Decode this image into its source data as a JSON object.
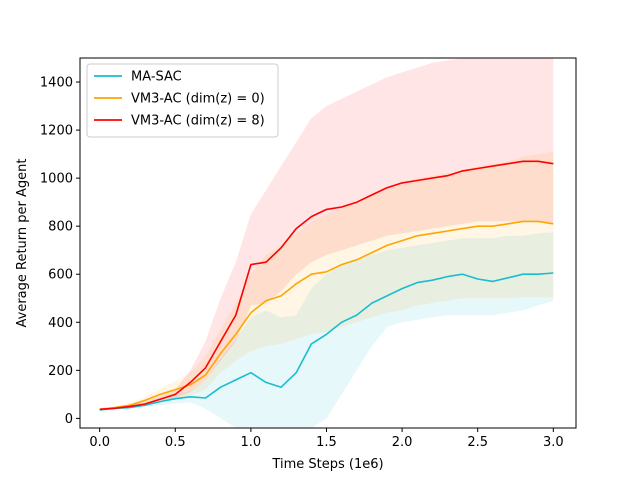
{
  "chart_data": {
    "type": "line",
    "title": "",
    "xlabel": "Time Steps (1e6)",
    "ylabel": "Average Return per Agent",
    "xlim": [
      -0.13,
      3.15
    ],
    "ylim": [
      -40,
      1500
    ],
    "xticks": [
      0.0,
      0.5,
      1.0,
      1.5,
      2.0,
      2.5,
      3.0
    ],
    "xtick_labels": [
      "0.0",
      "0.5",
      "1.0",
      "1.5",
      "2.0",
      "2.5",
      "3.0"
    ],
    "yticks": [
      0,
      200,
      400,
      600,
      800,
      1000,
      1200,
      1400
    ],
    "ytick_labels": [
      "0",
      "200",
      "400",
      "600",
      "800",
      "1000",
      "1200",
      "1400"
    ],
    "grid": false,
    "legend": "top-left",
    "x": [
      0.0,
      0.1,
      0.2,
      0.3,
      0.4,
      0.5,
      0.6,
      0.7,
      0.8,
      0.9,
      1.0,
      1.1,
      1.2,
      1.3,
      1.4,
      1.5,
      1.6,
      1.7,
      1.8,
      1.9,
      2.0,
      2.1,
      2.2,
      2.3,
      2.4,
      2.5,
      2.6,
      2.7,
      2.8,
      2.9,
      3.0
    ],
    "series": [
      {
        "name": "MA-SAC",
        "color": "#17becf",
        "values": [
          35,
          42,
          45,
          55,
          70,
          82,
          90,
          85,
          130,
          160,
          190,
          150,
          130,
          190,
          310,
          350,
          400,
          430,
          480,
          510,
          540,
          565,
          575,
          590,
          600,
          580,
          570,
          585,
          600,
          600,
          605
        ],
        "lower": [
          35,
          40,
          42,
          48,
          55,
          62,
          66,
          40,
          0,
          -40,
          -40,
          -40,
          -40,
          -40,
          -40,
          0,
          100,
          200,
          300,
          380,
          400,
          410,
          420,
          430,
          430,
          430,
          430,
          440,
          450,
          470,
          490
        ],
        "upper": [
          35,
          44,
          48,
          62,
          85,
          100,
          115,
          160,
          250,
          330,
          420,
          450,
          420,
          430,
          540,
          600,
          640,
          660,
          680,
          700,
          710,
          720,
          730,
          740,
          750,
          750,
          750,
          760,
          760,
          770,
          775
        ]
      },
      {
        "name": "VM3-AC (dim(z) = 0)",
        "color": "#ffa500",
        "values": [
          38,
          45,
          55,
          75,
          100,
          120,
          140,
          180,
          270,
          350,
          440,
          490,
          510,
          560,
          600,
          610,
          640,
          660,
          690,
          720,
          740,
          760,
          770,
          780,
          790,
          800,
          800,
          810,
          820,
          820,
          810
        ],
        "lower": [
          36,
          42,
          48,
          60,
          75,
          85,
          95,
          120,
          190,
          240,
          280,
          300,
          310,
          330,
          350,
          360,
          380,
          400,
          420,
          440,
          450,
          470,
          480,
          490,
          500,
          500,
          500,
          500,
          505,
          505,
          505
        ],
        "upper": [
          40,
          50,
          65,
          90,
          125,
          155,
          190,
          260,
          370,
          480,
          600,
          680,
          720,
          770,
          820,
          850,
          880,
          900,
          930,
          960,
          980,
          1000,
          1010,
          1020,
          1030,
          1050,
          1060,
          1070,
          1090,
          1100,
          1110
        ]
      },
      {
        "name": "VM3-AC (dim(z) = 8)",
        "color": "#ff0000",
        "values": [
          38,
          42,
          50,
          60,
          80,
          100,
          150,
          210,
          320,
          430,
          640,
          650,
          710,
          790,
          840,
          870,
          880,
          900,
          930,
          960,
          980,
          990,
          1000,
          1010,
          1030,
          1040,
          1050,
          1060,
          1070,
          1070,
          1060
        ],
        "lower": [
          36,
          40,
          46,
          52,
          68,
          85,
          110,
          160,
          240,
          320,
          470,
          480,
          530,
          600,
          650,
          680,
          700,
          720,
          740,
          760,
          770,
          780,
          790,
          800,
          810,
          820,
          820,
          820,
          820,
          820,
          810
        ],
        "upper": [
          40,
          45,
          55,
          70,
          95,
          120,
          200,
          320,
          500,
          650,
          850,
          950,
          1050,
          1150,
          1250,
          1300,
          1330,
          1360,
          1390,
          1420,
          1440,
          1460,
          1480,
          1490,
          1500,
          1500,
          1500,
          1500,
          1500,
          1500,
          1500
        ]
      }
    ]
  },
  "legend_entries": [
    {
      "label": "MA-SAC",
      "color": "#17becf"
    },
    {
      "label": "VM3-AC (dim(z) = 0)",
      "color": "#ffa500"
    },
    {
      "label": "VM3-AC (dim(z) = 8)",
      "color": "#ff0000"
    }
  ]
}
